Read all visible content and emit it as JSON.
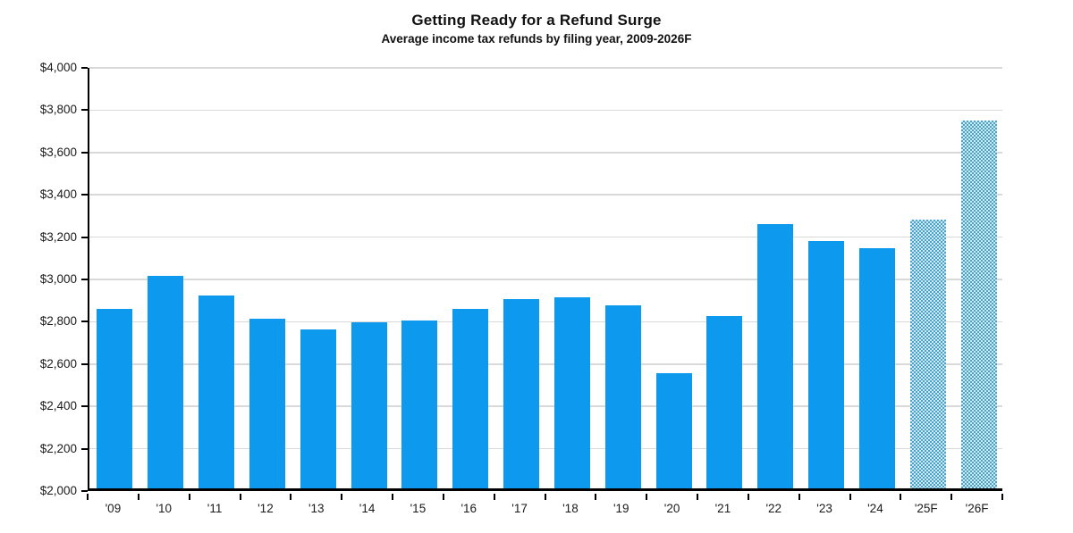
{
  "chart_data": {
    "type": "bar",
    "title": "Getting Ready for a Refund Surge",
    "subtitle": "Average income tax refunds by filing year, 2009-2026F",
    "categories": [
      "'09",
      "'10",
      "'11",
      "'12",
      "'13",
      "'14",
      "'15",
      "'16",
      "'17",
      "'18",
      "'19",
      "'20",
      "'21",
      "'22",
      "'23",
      "'24",
      "'25F",
      "'26F"
    ],
    "values": [
      2850,
      3005,
      2910,
      2800,
      2750,
      2785,
      2795,
      2850,
      2895,
      2905,
      2865,
      2545,
      2815,
      3250,
      3170,
      3135,
      3270,
      3740
    ],
    "forecast_flags": [
      false,
      false,
      false,
      false,
      false,
      false,
      false,
      false,
      false,
      false,
      false,
      false,
      false,
      false,
      false,
      false,
      true,
      true
    ],
    "xlabel": "",
    "ylabel": "",
    "ylim": [
      2000,
      4000
    ],
    "ytick_step": 200,
    "ytick_labels": [
      "$2,000",
      "$2,200",
      "$2,400",
      "$2,600",
      "$2,800",
      "$3,000",
      "$3,200",
      "$3,400",
      "$3,600",
      "$3,800",
      "$4,000"
    ],
    "grid": true,
    "legend_position": "none",
    "colors": {
      "bar_actual": "#0d99ee",
      "bar_forecast_dark": "#4aa2c6",
      "bar_forecast_light": "#cfeaf6",
      "gridline": "#d9d9d9",
      "axis": "#000000",
      "text": "#111111"
    }
  }
}
